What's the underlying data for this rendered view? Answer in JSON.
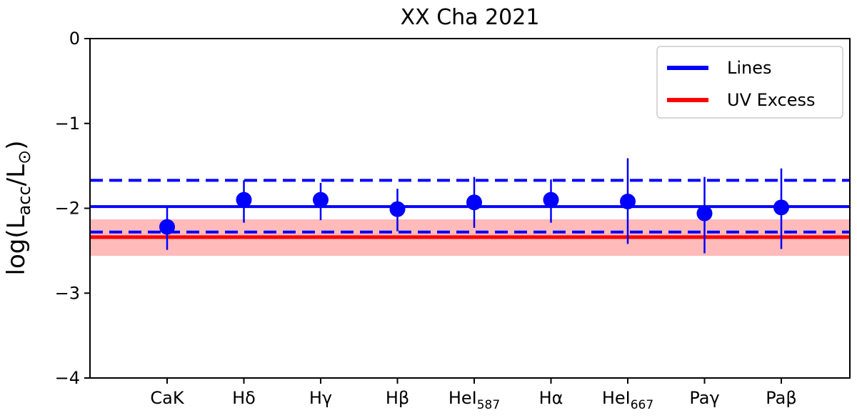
{
  "chart_data": {
    "type": "scatter",
    "title": "XX Cha 2021",
    "xlabel": "",
    "ylabel": "log(L_acc/L_⊙)",
    "ylim": [
      -4,
      0
    ],
    "yticks": [
      0,
      -1,
      -2,
      -3,
      -4
    ],
    "ytick_labels": [
      "0",
      "−1",
      "−2",
      "−3",
      "−4"
    ],
    "grid": false,
    "legend_position": "top-right",
    "categories": [
      {
        "base": "CaK",
        "sub": ""
      },
      {
        "base": "Hδ",
        "sub": ""
      },
      {
        "base": "Hγ",
        "sub": ""
      },
      {
        "base": "Hβ",
        "sub": ""
      },
      {
        "base": "HeI",
        "sub": "587"
      },
      {
        "base": "Hα",
        "sub": ""
      },
      {
        "base": "HeI",
        "sub": "667"
      },
      {
        "base": "Paγ",
        "sub": ""
      },
      {
        "base": "Paβ",
        "sub": ""
      }
    ],
    "points": [
      {
        "y": -2.22,
        "err_low": -2.49,
        "err_high": -1.98
      },
      {
        "y": -1.9,
        "err_low": -2.17,
        "err_high": -1.67
      },
      {
        "y": -1.9,
        "err_low": -2.14,
        "err_high": -1.7
      },
      {
        "y": -2.01,
        "err_low": -2.27,
        "err_high": -1.77
      },
      {
        "y": -1.93,
        "err_low": -2.23,
        "err_high": -1.63
      },
      {
        "y": -1.9,
        "err_low": -2.17,
        "err_high": -1.66
      },
      {
        "y": -1.92,
        "err_low": -2.42,
        "err_high": -1.41
      },
      {
        "y": -2.06,
        "err_low": -2.53,
        "err_high": -1.63
      },
      {
        "y": -1.99,
        "err_low": -2.48,
        "err_high": -1.53
      }
    ],
    "lines_mean": -1.98,
    "lines_band": [
      -2.28,
      -1.67
    ],
    "uv_excess_value": -2.34,
    "uv_excess_band": [
      -2.56,
      -2.13
    ],
    "legend": [
      {
        "label": "Lines",
        "color": "#0000ff"
      },
      {
        "label": "UV Excess",
        "color": "#ff0000"
      }
    ],
    "colors": {
      "lines": "#0000ff",
      "uv_excess": "#ff0000",
      "uv_band_fill": "#ffb3b3"
    }
  },
  "ylabel_parts": {
    "prefix": "log(",
    "L": "L",
    "acc": "acc",
    "slash": "/L",
    "sun": "⊙",
    "suffix": ")"
  }
}
